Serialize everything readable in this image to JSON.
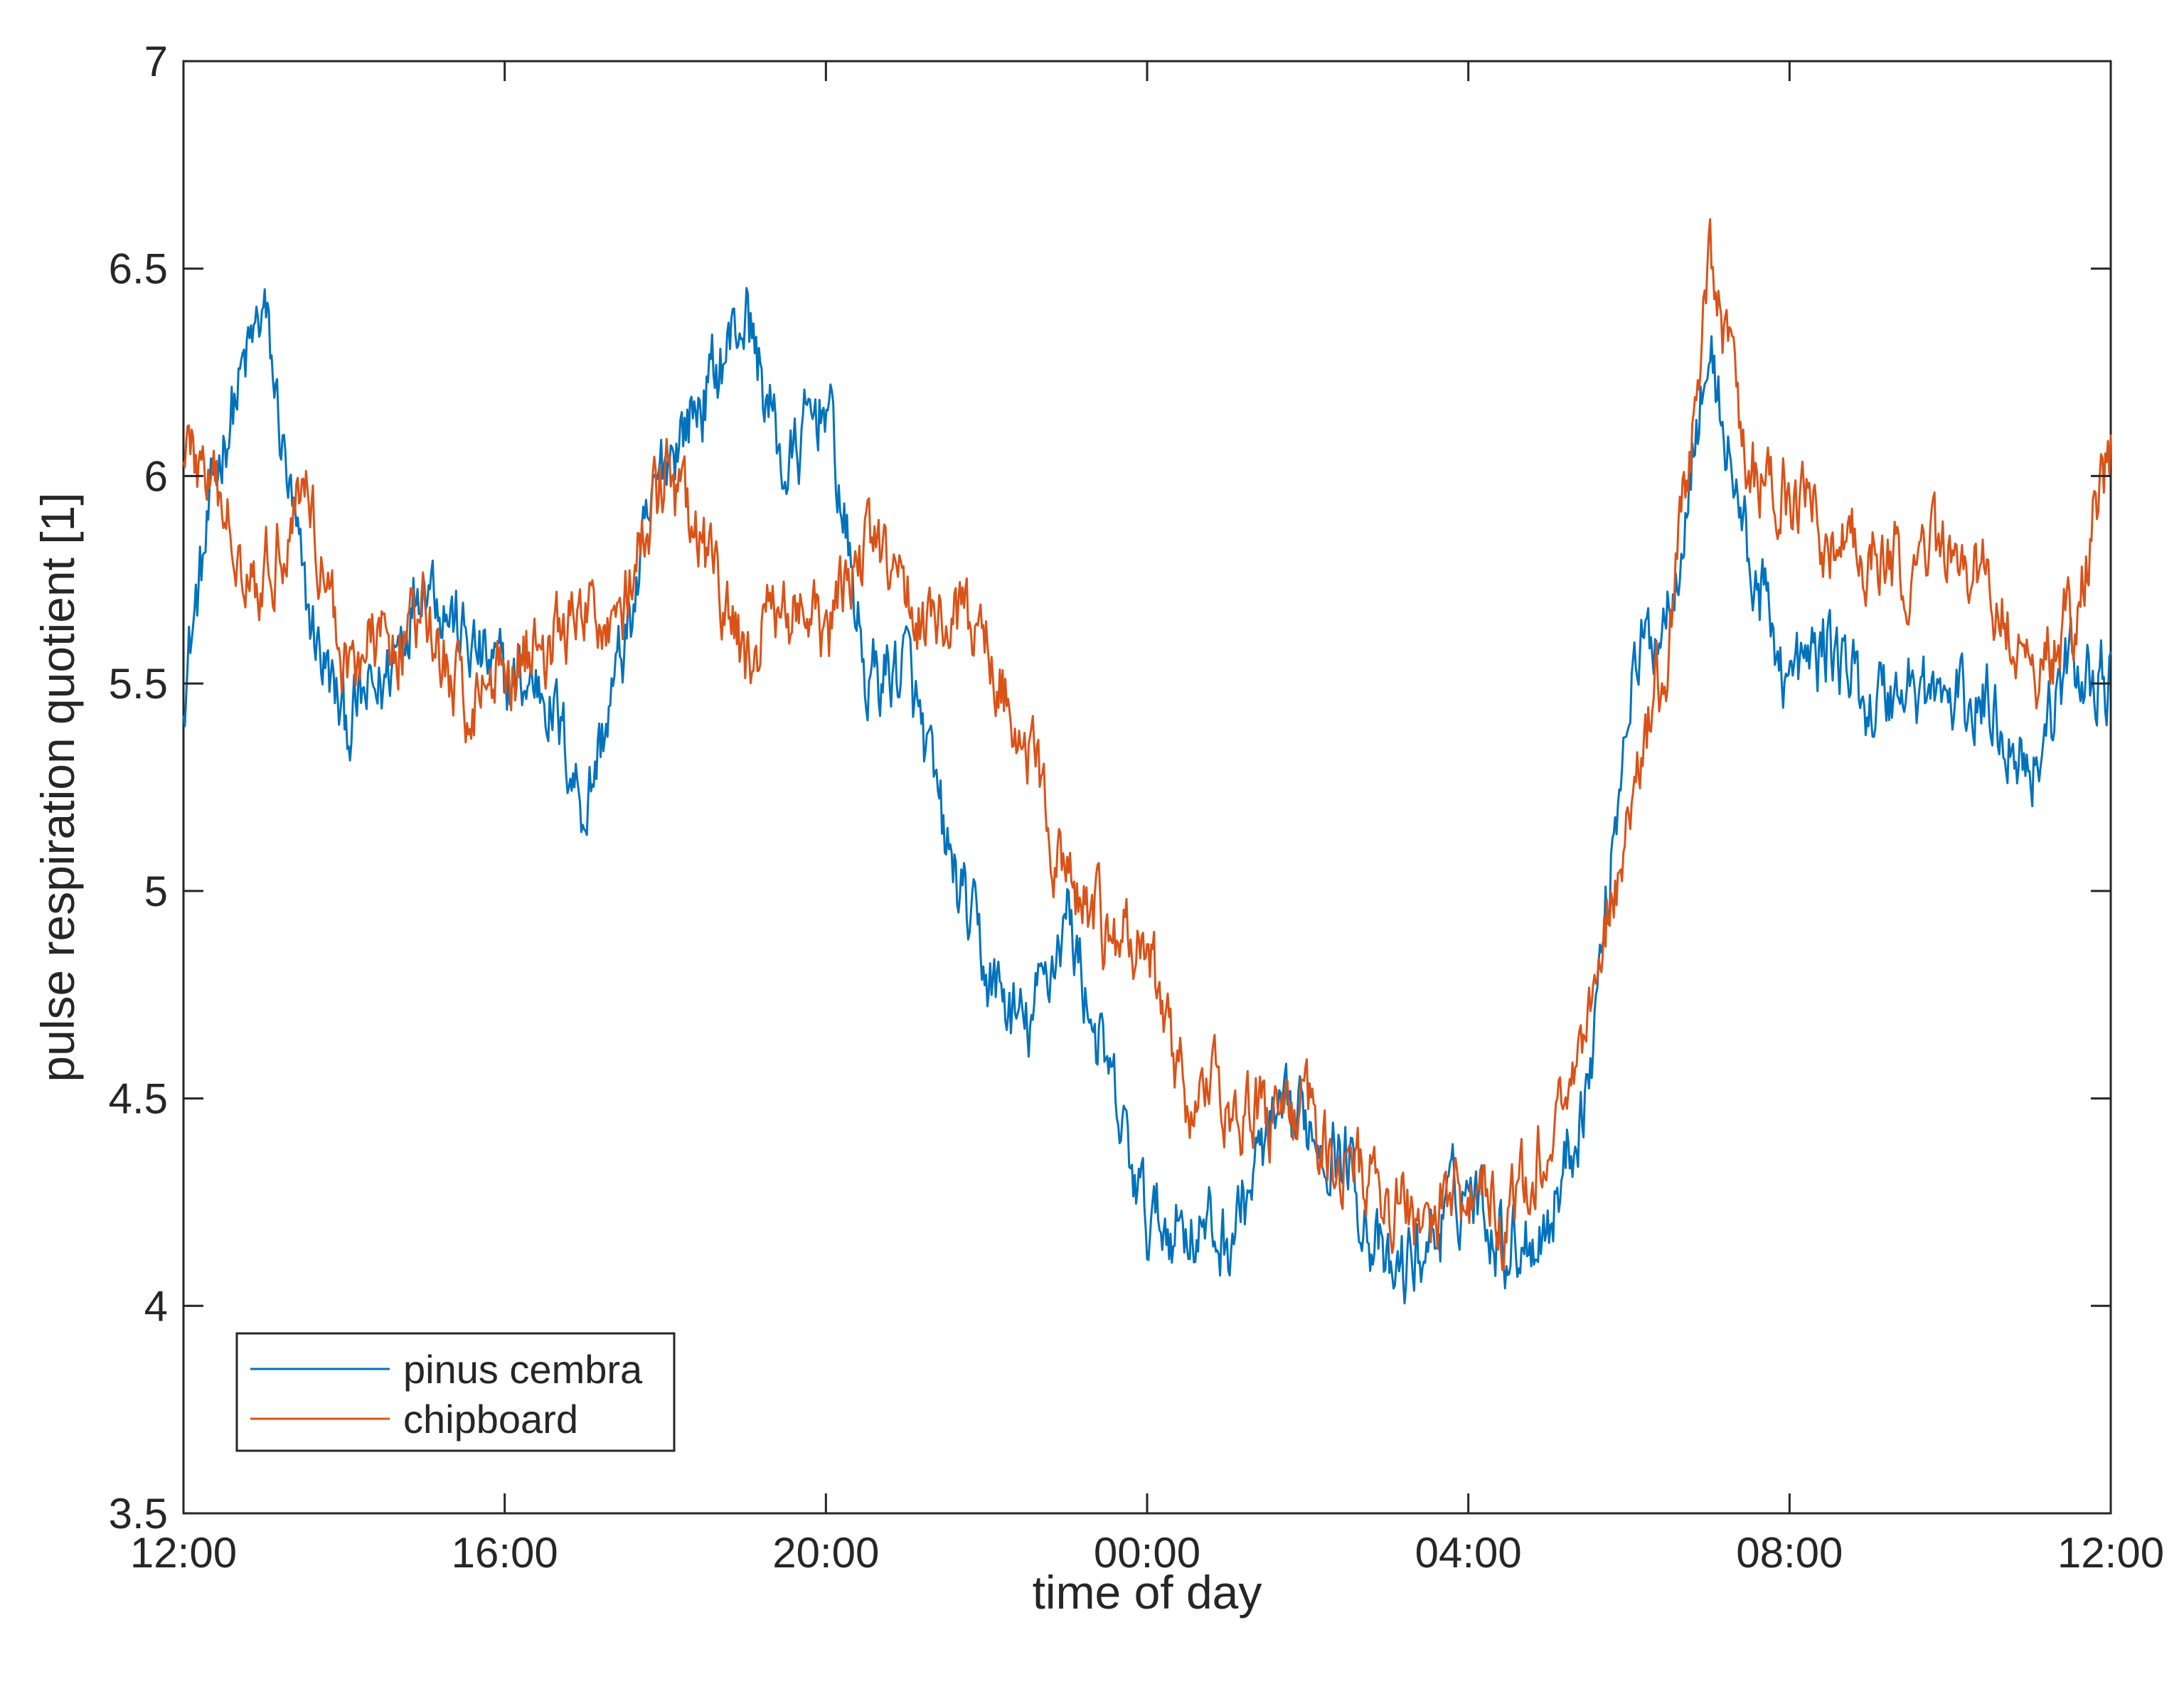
{
  "chart_data": {
    "type": "line",
    "title": "",
    "xlabel": "time of day",
    "ylabel": "pulse respiration quotient [1]",
    "xlim": [
      "12:00",
      "12:00 (+1 day)"
    ],
    "ylim": [
      3.5,
      7
    ],
    "x_ticks": [
      "12:00",
      "16:00",
      "20:00",
      "00:00",
      "04:00",
      "08:00",
      "12:00"
    ],
    "y_ticks": [
      "3.5",
      "4",
      "4.5",
      "5",
      "5.5",
      "6",
      "6.5",
      "7"
    ],
    "x_unit": "hour of day (continuous, 12:00 to 12:00 next day)",
    "grid": false,
    "legend_position": "bottom-left",
    "x": [
      "12:00",
      "12:30",
      "13:00",
      "13:30",
      "14:00",
      "14:30",
      "15:00",
      "15:30",
      "16:00",
      "16:30",
      "17:00",
      "17:30",
      "18:00",
      "18:30",
      "19:00",
      "19:30",
      "20:00",
      "20:30",
      "21:00",
      "21:30",
      "22:00",
      "22:30",
      "23:00",
      "23:30",
      "00:00",
      "00:30",
      "01:00",
      "01:30",
      "02:00",
      "02:30",
      "03:00",
      "03:30",
      "04:00",
      "04:30",
      "05:00",
      "05:30",
      "06:00",
      "06:30",
      "07:00",
      "07:30",
      "08:00",
      "08:30",
      "09:00",
      "09:30",
      "10:00",
      "10:30",
      "11:00",
      "11:30",
      "12:00"
    ],
    "series": [
      {
        "name": "pinus cembra",
        "color": "#0072BD",
        "values": [
          5.5,
          6.1,
          6.4,
          5.7,
          5.4,
          5.5,
          5.8,
          5.6,
          5.5,
          5.5,
          5.2,
          5.6,
          6.05,
          6.2,
          6.4,
          6.0,
          6.2,
          5.5,
          5.55,
          5.1,
          4.8,
          4.65,
          4.95,
          4.55,
          4.2,
          4.2,
          4.15,
          4.4,
          4.45,
          4.35,
          4.05,
          4.15,
          4.3,
          4.15,
          4.2,
          4.55,
          5.5,
          5.7,
          6.3,
          5.8,
          5.5,
          5.6,
          5.45,
          5.5,
          5.45,
          5.45,
          5.3,
          5.55,
          5.5
        ]
      },
      {
        "name": "chipboard",
        "color": "#D95319",
        "values": [
          6.1,
          5.9,
          5.75,
          6.0,
          5.55,
          5.6,
          5.65,
          5.45,
          5.55,
          5.6,
          5.65,
          5.7,
          6.0,
          5.8,
          5.55,
          5.7,
          5.6,
          5.85,
          5.7,
          5.65,
          5.6,
          5.35,
          5.0,
          4.9,
          4.85,
          4.5,
          4.5,
          4.45,
          4.45,
          4.35,
          4.25,
          4.2,
          4.3,
          4.2,
          4.4,
          4.7,
          5.2,
          5.6,
          6.5,
          6.0,
          5.95,
          5.85,
          5.8,
          5.8,
          5.8,
          5.75,
          5.5,
          5.65,
          6.05
        ]
      }
    ]
  }
}
